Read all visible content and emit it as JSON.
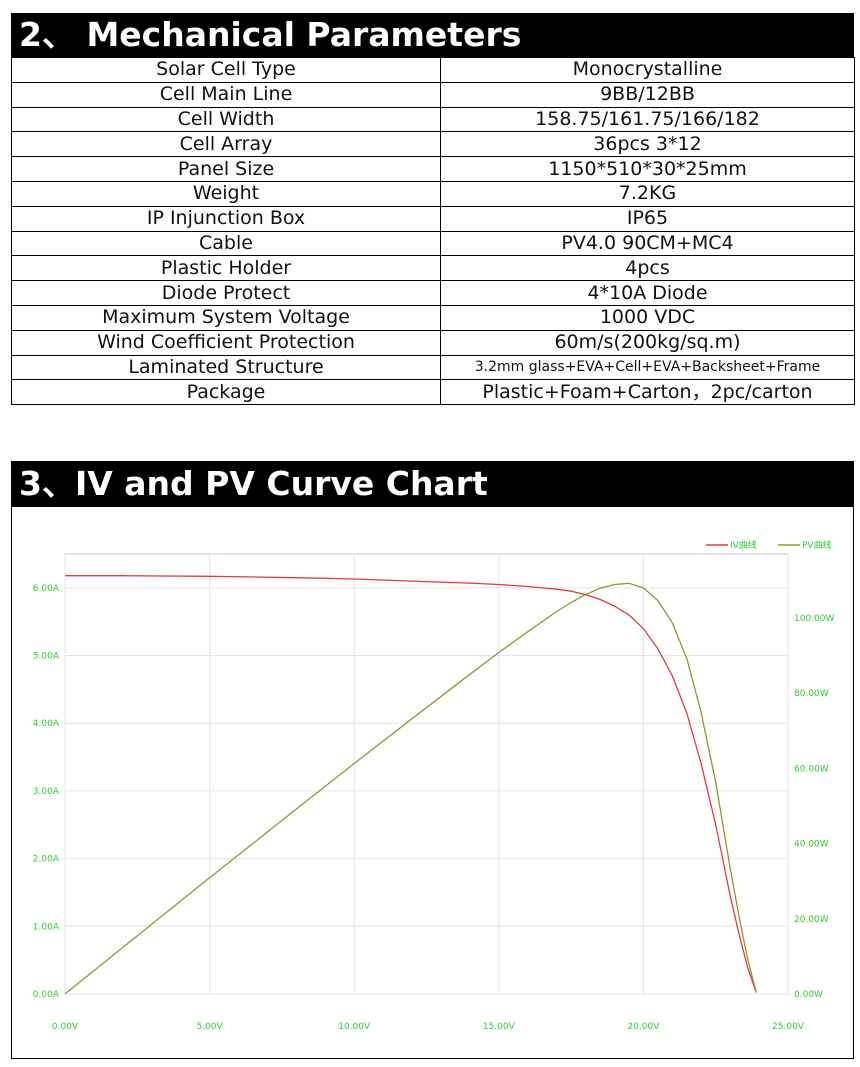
{
  "section2": {
    "title": "2、 Mechanical Parameters",
    "rows": [
      {
        "label": "Solar Cell Type",
        "value": "Monocrystalline"
      },
      {
        "label": "Cell Main Line",
        "value": "9BB/12BB"
      },
      {
        "label": "Cell Width",
        "value": "158.75/161.75/166/182"
      },
      {
        "label": "Cell Array",
        "value": "36pcs 3*12"
      },
      {
        "label": "Panel Size",
        "value": "1150*510*30*25mm"
      },
      {
        "label": "Weight",
        "value": "7.2KG"
      },
      {
        "label": "IP Injunction Box",
        "value": "IP65"
      },
      {
        "label": "Cable",
        "value": "PV4.0 90CM+MC4"
      },
      {
        "label": "Plastic Holder",
        "value": "4pcs"
      },
      {
        "label": "Diode Protect",
        "value": "4*10A Diode"
      },
      {
        "label": "Maximum System Voltage",
        "value": "1000 VDC"
      },
      {
        "label": "Wind Coefficient Protection",
        "value": "60m/s(200kg/sq.m)"
      },
      {
        "label": "Laminated Structure",
        "value": "3.2mm glass+EVA+Cell+EVA+Backsheet+Frame"
      },
      {
        "label": "Package",
        "value": "Plastic+Foam+Carton，2pc/carton"
      }
    ]
  },
  "section3": {
    "title": "3、IV and PV Curve Chart"
  },
  "chart_data": {
    "type": "line",
    "title": "",
    "xlabel": "",
    "ylabel": "",
    "xlim": [
      0,
      25
    ],
    "ylim": [
      0,
      6.5
    ],
    "y2lim": [
      0,
      117
    ],
    "x_ticks": [
      "0.00V",
      "5.00V",
      "10.00V",
      "15.00V",
      "20.00V",
      "25.00V"
    ],
    "y_ticks": [
      "0.00A",
      "1.00A",
      "2.00A",
      "3.00A",
      "4.00A",
      "5.00A",
      "6.00A"
    ],
    "y2_ticks": [
      "0.00W",
      "20.00W",
      "40.00W",
      "60.00W",
      "80.00W",
      "100.00W"
    ],
    "grid": true,
    "legend_position": "top-right",
    "series": [
      {
        "name": "IV曲线",
        "axis": "left",
        "color": "#e03c3c",
        "x": [
          0,
          2,
          5,
          8,
          10,
          12,
          14,
          15,
          16,
          17,
          17.5,
          18,
          18.5,
          19,
          19.5,
          20,
          20.5,
          21,
          21.5,
          22,
          22.5,
          23,
          23.3,
          23.6,
          23.9
        ],
        "y": [
          6.18,
          6.18,
          6.17,
          6.15,
          6.13,
          6.1,
          6.07,
          6.05,
          6.02,
          5.98,
          5.95,
          5.9,
          5.83,
          5.73,
          5.6,
          5.4,
          5.1,
          4.7,
          4.15,
          3.4,
          2.5,
          1.45,
          0.9,
          0.4,
          0.02
        ]
      },
      {
        "name": "PV曲线",
        "axis": "right",
        "color": "#8a9a2e",
        "x": [
          0,
          2,
          5,
          8,
          10,
          12,
          14,
          15,
          16,
          17,
          17.5,
          18,
          18.5,
          19,
          19.5,
          20,
          20.5,
          21,
          21.5,
          22,
          22.5,
          23,
          23.3,
          23.6,
          23.9
        ],
        "y": [
          0,
          12.4,
          30.9,
          49.2,
          61.3,
          73.2,
          85.0,
          90.8,
          96.3,
          101.7,
          104.1,
          106.2,
          107.9,
          108.9,
          109.2,
          108.0,
          104.6,
          98.7,
          89.2,
          74.8,
          56.3,
          33.4,
          21.0,
          9.4,
          0.5
        ]
      }
    ]
  }
}
